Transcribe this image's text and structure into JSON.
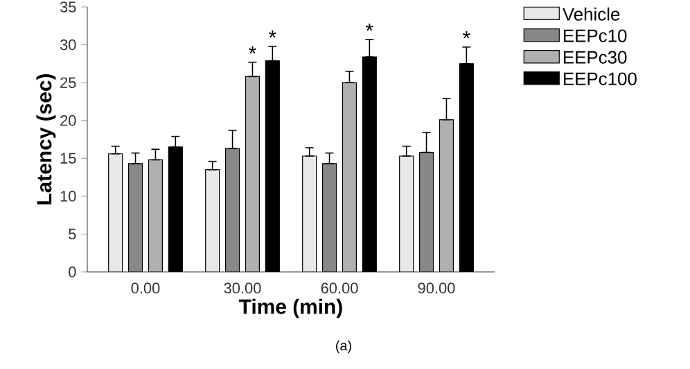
{
  "chart_data": {
    "type": "bar",
    "xlabel": "Time (min)",
    "ylabel": "Latency (sec)",
    "categories": [
      "0.00",
      "30.00",
      "60.00",
      "90.00"
    ],
    "series": [
      {
        "name": "Vehicle",
        "color": "#e8e8e8",
        "values": [
          15.6,
          13.5,
          15.3,
          15.3
        ],
        "errors": [
          [
            15.6,
            16.6
          ],
          [
            13.5,
            14.6
          ],
          [
            15.3,
            16.4
          ],
          [
            15.3,
            16.6
          ]
        ]
      },
      {
        "name": "EEPc10",
        "color": "#888888",
        "values": [
          14.3,
          16.3,
          14.3,
          15.8
        ],
        "errors": [
          [
            14.3,
            15.7
          ],
          [
            16.3,
            18.7
          ],
          [
            14.3,
            15.7
          ],
          [
            15.8,
            18.4
          ]
        ]
      },
      {
        "name": "EEPc30",
        "color": "#b0b0b0",
        "values": [
          14.8,
          25.8,
          25.0,
          20.1
        ],
        "errors": [
          [
            14.8,
            16.2
          ],
          [
            25.8,
            27.7
          ],
          [
            25.0,
            26.5
          ],
          [
            20.1,
            22.9
          ]
        ],
        "value_labels": [
          null,
          "*",
          null,
          null
        ]
      },
      {
        "name": "EEPc100",
        "color": "#000000",
        "values": [
          16.5,
          27.9,
          28.4,
          27.5
        ],
        "errors": [
          [
            16.5,
            17.9
          ],
          [
            27.9,
            29.8
          ],
          [
            28.4,
            30.7
          ],
          [
            27.5,
            29.7
          ]
        ],
        "value_labels": [
          null,
          "*",
          "*",
          "*"
        ]
      }
    ],
    "ylim": [
      0,
      35
    ],
    "yticks": [
      0,
      5,
      10,
      15,
      20,
      25,
      30,
      35
    ],
    "grid": false,
    "legend": "top right",
    "annotations": [
      "(a)"
    ]
  }
}
